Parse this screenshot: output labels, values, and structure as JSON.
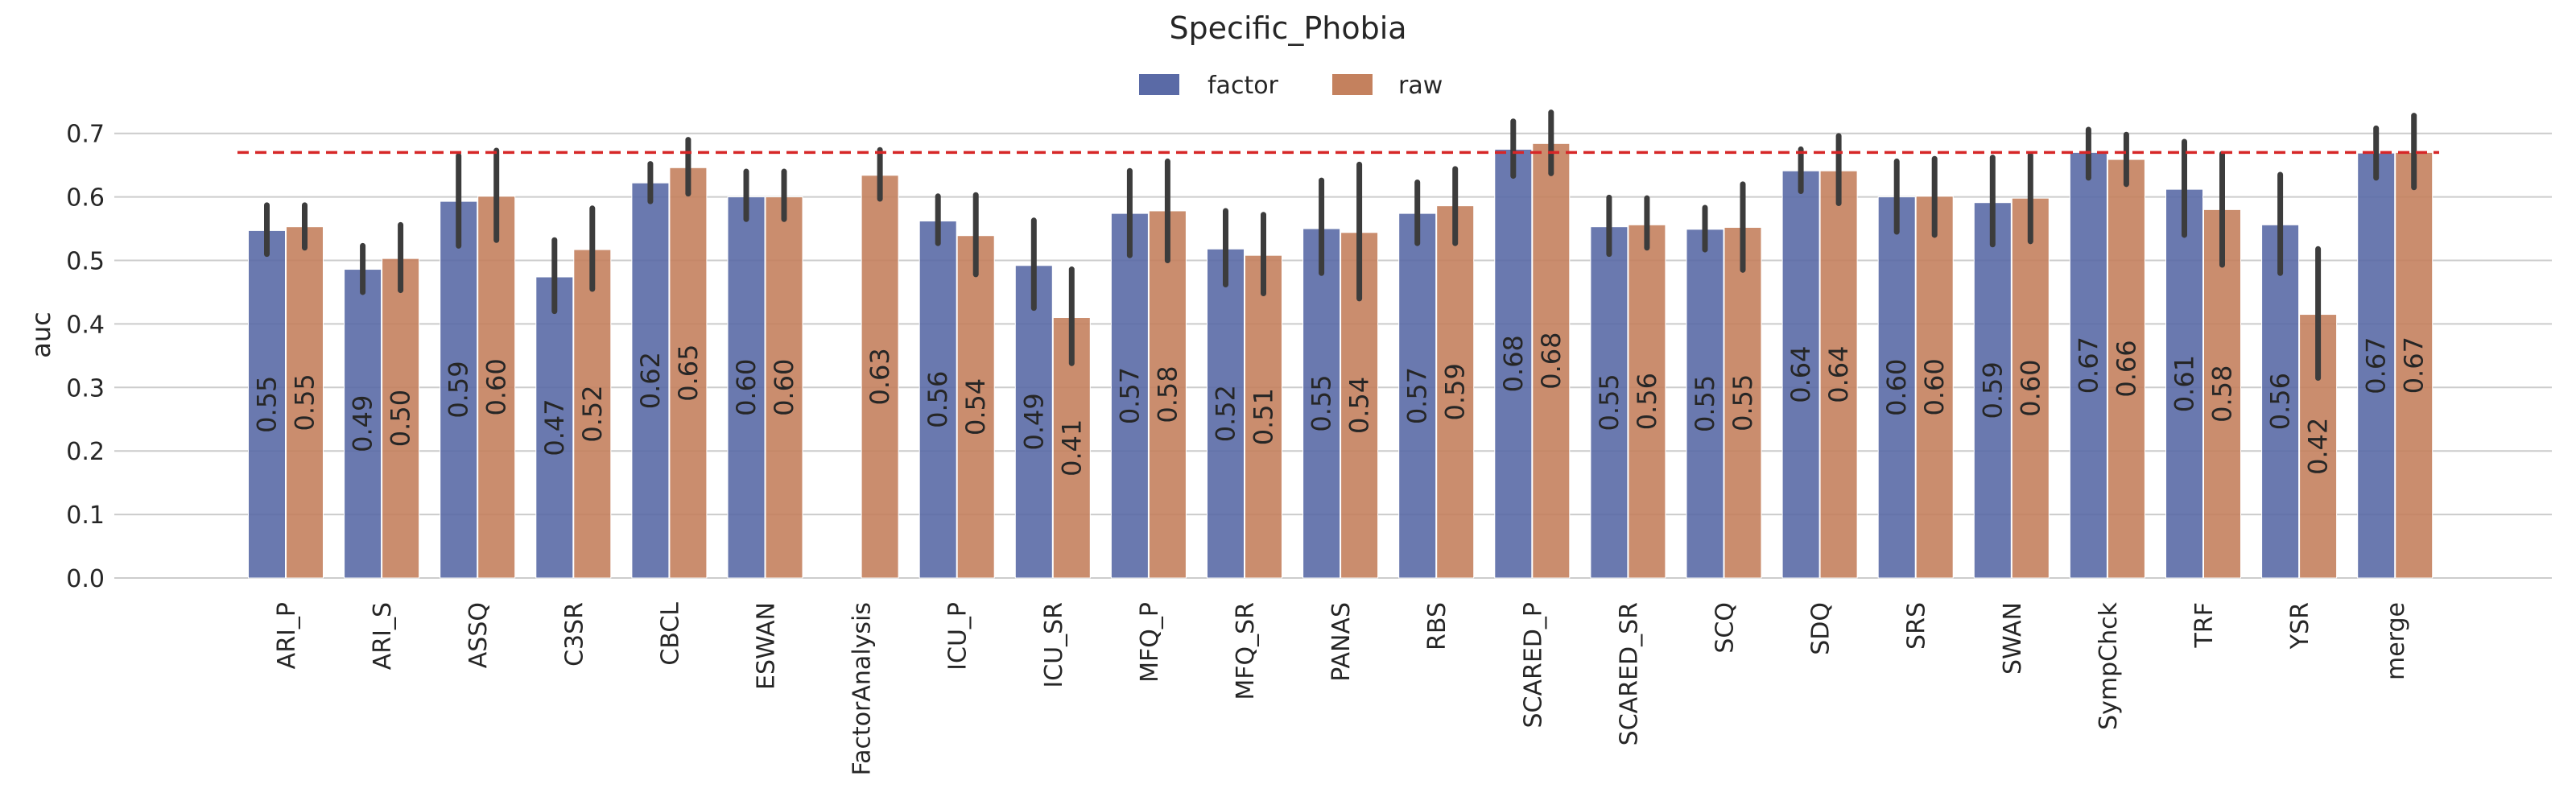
{
  "chart_data": {
    "type": "bar",
    "title": "Specific_Phobia",
    "xlabel": "",
    "ylabel": "auc",
    "ylim": [
      0,
      0.75
    ],
    "yticks": [
      "0.0",
      "0.1",
      "0.2",
      "0.3",
      "0.4",
      "0.5",
      "0.6",
      "0.7"
    ],
    "grid": "horizontal",
    "legend_position": "top-center",
    "reference_line": 0.67,
    "reference_line_color": "#d62728",
    "categories": [
      "ARI_P",
      "ARI_S",
      "ASSQ",
      "C3SR",
      "CBCL",
      "ESWAN",
      "FactorAnalysis",
      "ICU_P",
      "ICU_SR",
      "MFQ_P",
      "MFQ_SR",
      "PANAS",
      "RBS",
      "SCARED_P",
      "SCARED_SR",
      "SCQ",
      "SDQ",
      "SRS",
      "SWAN",
      "SympChck",
      "TRF",
      "YSR",
      "merge"
    ],
    "series": [
      {
        "name": "factor",
        "color": "#5a6aa6",
        "values": [
          0.547,
          0.486,
          0.593,
          0.474,
          0.622,
          0.6,
          null,
          0.562,
          0.492,
          0.574,
          0.518,
          0.55,
          0.574,
          0.675,
          0.553,
          0.549,
          0.641,
          0.6,
          0.591,
          0.67,
          0.612,
          0.556,
          0.669
        ],
        "labels": [
          "0.55",
          "0.49",
          "0.59",
          "0.47",
          "0.62",
          "0.60",
          "",
          "0.56",
          "0.49",
          "0.57",
          "0.52",
          "0.55",
          "0.57",
          "0.68",
          "0.55",
          "0.55",
          "0.64",
          "0.60",
          "0.59",
          "0.67",
          "0.61",
          "0.56",
          "0.67"
        ],
        "err_low": [
          0.51,
          0.45,
          0.523,
          0.42,
          0.593,
          0.565,
          null,
          0.527,
          0.425,
          0.508,
          0.462,
          0.48,
          0.527,
          0.633,
          0.51,
          0.517,
          0.609,
          0.545,
          0.525,
          0.63,
          0.54,
          0.48,
          0.63
        ],
        "err_high": [
          0.587,
          0.523,
          0.665,
          0.532,
          0.652,
          0.64,
          null,
          0.601,
          0.563,
          0.641,
          0.578,
          0.626,
          0.623,
          0.719,
          0.599,
          0.583,
          0.675,
          0.656,
          0.662,
          0.706,
          0.687,
          0.635,
          0.708
        ]
      },
      {
        "name": "raw",
        "color": "#c4815e",
        "values": [
          0.553,
          0.503,
          0.601,
          0.517,
          0.646,
          0.6,
          0.634,
          0.539,
          0.41,
          0.578,
          0.508,
          0.544,
          0.586,
          0.684,
          0.556,
          0.552,
          0.641,
          0.601,
          0.598,
          0.659,
          0.58,
          0.415,
          0.67
        ],
        "labels": [
          "0.55",
          "0.50",
          "0.60",
          "0.52",
          "0.65",
          "0.60",
          "0.63",
          "0.54",
          "0.41",
          "0.58",
          "0.51",
          "0.54",
          "0.59",
          "0.68",
          "0.56",
          "0.55",
          "0.64",
          "0.60",
          "0.60",
          "0.66",
          "0.58",
          "0.42",
          "0.67"
        ],
        "err_low": [
          0.52,
          0.453,
          0.532,
          0.455,
          0.605,
          0.565,
          0.597,
          0.478,
          0.338,
          0.5,
          0.448,
          0.44,
          0.527,
          0.637,
          0.52,
          0.485,
          0.59,
          0.54,
          0.53,
          0.62,
          0.493,
          0.315,
          0.615
        ],
        "err_high": [
          0.587,
          0.556,
          0.673,
          0.582,
          0.69,
          0.64,
          0.674,
          0.603,
          0.486,
          0.656,
          0.572,
          0.651,
          0.644,
          0.733,
          0.598,
          0.62,
          0.696,
          0.66,
          0.666,
          0.698,
          0.668,
          0.518,
          0.728
        ]
      }
    ]
  }
}
